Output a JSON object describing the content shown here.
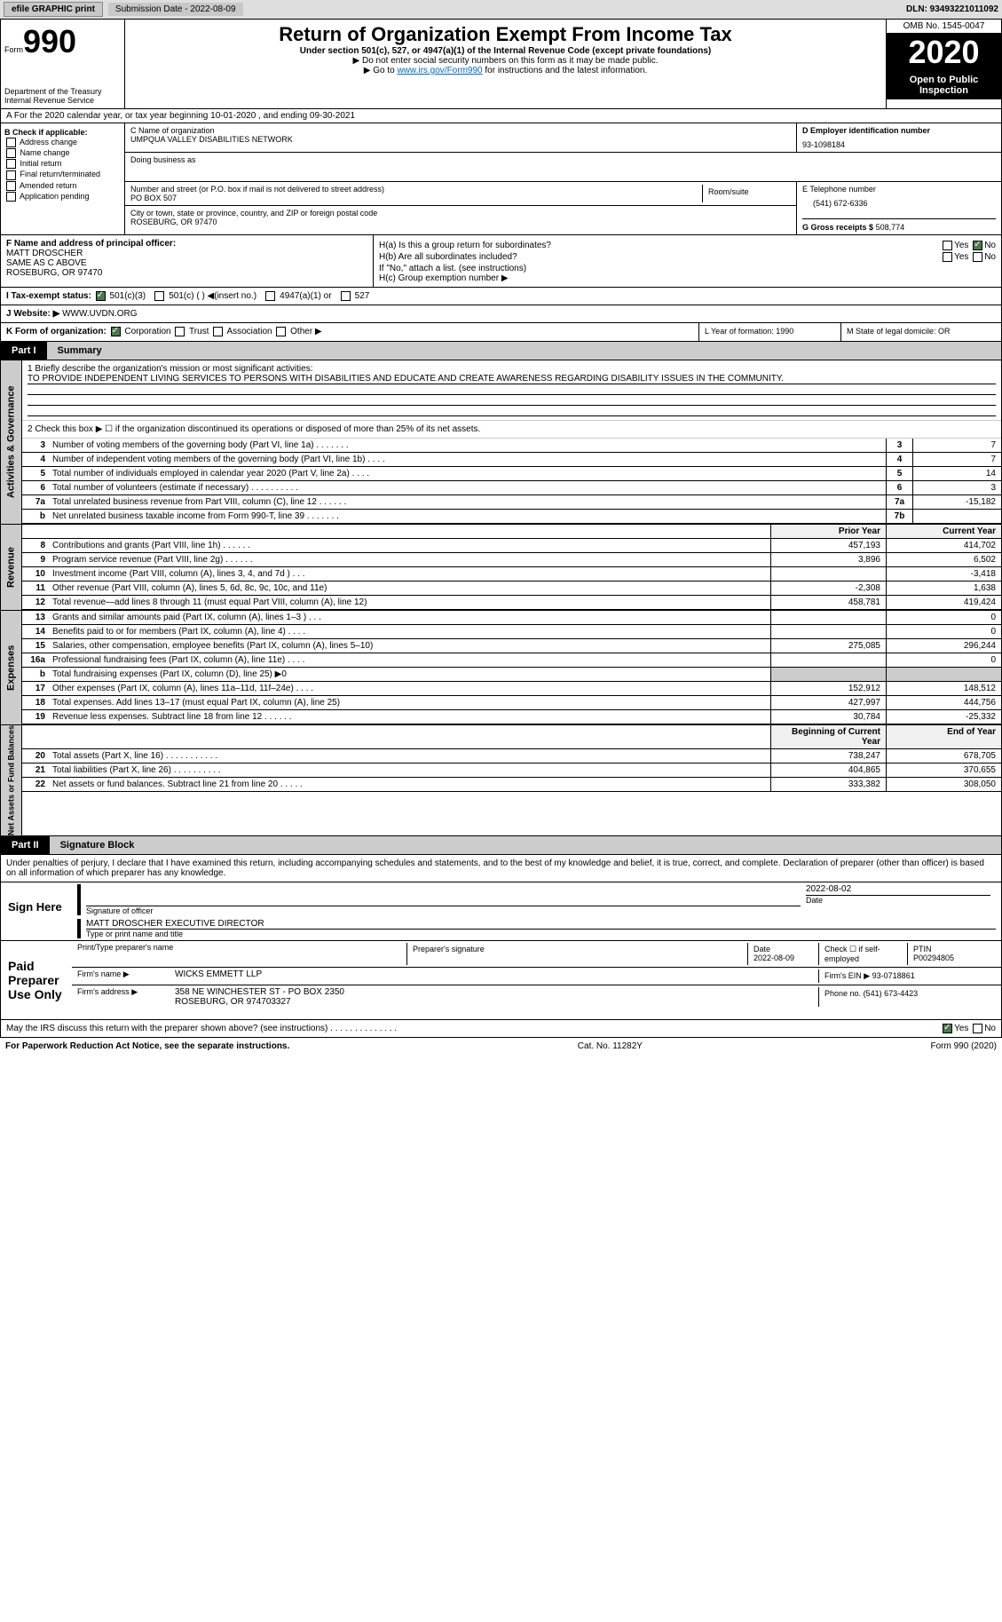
{
  "top": {
    "efile": "efile GRAPHIC print",
    "sub_label": "Submission Date - 2022-08-09",
    "dln": "DLN: 93493221011092"
  },
  "header": {
    "form_word": "Form",
    "form_no": "990",
    "dept": "Department of the Treasury\nInternal Revenue Service",
    "title": "Return of Organization Exempt From Income Tax",
    "sub": "Under section 501(c), 527, or 4947(a)(1) of the Internal Revenue Code (except private foundations)",
    "note1": "▶ Do not enter social security numbers on this form as it may be made public.",
    "note2_pre": "▶ Go to ",
    "note2_link": "www.irs.gov/Form990",
    "note2_post": " for instructions and the latest information.",
    "omb": "OMB No. 1545-0047",
    "year": "2020",
    "open": "Open to Public Inspection"
  },
  "row_a": "A For the 2020 calendar year, or tax year beginning 10-01-2020     , and ending 09-30-2021",
  "box_b": {
    "title": "B Check if applicable:",
    "items": [
      "Address change",
      "Name change",
      "Initial return",
      "Final return/terminated",
      "Amended return",
      "Application pending"
    ]
  },
  "box_c": {
    "label": "C Name of organization",
    "name": "UMPQUA VALLEY DISABILITIES NETWORK",
    "dba_label": "Doing business as",
    "addr_label": "Number and street (or P.O. box if mail is not delivered to street address)",
    "addr": "PO BOX 507",
    "room_label": "Room/suite",
    "city_label": "City or town, state or province, country, and ZIP or foreign postal code",
    "city": "ROSEBURG, OR  97470"
  },
  "box_d": {
    "label": "D Employer identification number",
    "val": "93-1098184"
  },
  "box_e": {
    "label": "E Telephone number",
    "val": "(541) 672-6336"
  },
  "box_g": {
    "label": "G Gross receipts $",
    "val": "508,774"
  },
  "box_f": {
    "label": "F Name and address of principal officer:",
    "name": "MATT DROSCHER",
    "line2": "SAME AS C ABOVE",
    "line3": "ROSEBURG, OR  97470"
  },
  "box_h": {
    "ha": "H(a)  Is this a group return for subordinates?",
    "hb": "H(b)  Are all subordinates included?",
    "hb_note": "If \"No,\" attach a list. (see instructions)",
    "hc": "H(c)  Group exemption number ▶",
    "yes": "Yes",
    "no": "No"
  },
  "tax_status": {
    "label": "I   Tax-exempt status:",
    "opts": [
      "501(c)(3)",
      "501(c) (  ) ◀(insert no.)",
      "4947(a)(1) or",
      "527"
    ]
  },
  "website": {
    "label": "J   Website: ▶",
    "val": "WWW.UVDN.ORG"
  },
  "row_k": {
    "label": "K Form of organization:",
    "opts": [
      "Corporation",
      "Trust",
      "Association",
      "Other ▶"
    ],
    "l": "L Year of formation: 1990",
    "m": "M State of legal domicile: OR"
  },
  "part1": {
    "tab": "Part I",
    "title": "Summary"
  },
  "summary": {
    "side1": "Activities & Governance",
    "side2": "Revenue",
    "side3": "Expenses",
    "side4": "Net Assets or Fund Balances",
    "q1_label": "1   Briefly describe the organization's mission or most significant activities:",
    "q1_text": "TO PROVIDE INDEPENDENT LIVING SERVICES TO PERSONS WITH DISABILITIES AND EDUCATE AND CREATE AWARENESS REGARDING DISABILITY ISSUES IN THE COMMUNITY.",
    "q2": "2   Check this box ▶ ☐  if the organization discontinued its operations or disposed of more than 25% of its net assets.",
    "lines": [
      {
        "n": "3",
        "label": "Number of voting members of the governing body (Part VI, line 1a)  .   .   .   .   .   .   .",
        "box": "3",
        "val": "7"
      },
      {
        "n": "4",
        "label": "Number of independent voting members of the governing body (Part VI, line 1b)   .   .   .   .",
        "box": "4",
        "val": "7"
      },
      {
        "n": "5",
        "label": "Total number of individuals employed in calendar year 2020 (Part V, line 2a)   .   .   .   .",
        "box": "5",
        "val": "14"
      },
      {
        "n": "6",
        "label": "Total number of volunteers (estimate if necessary)   .   .   .   .   .   .   .   .   .   .",
        "box": "6",
        "val": "3"
      },
      {
        "n": "7a",
        "label": "Total unrelated business revenue from Part VIII, column (C), line 12   .   .   .   .   .   .",
        "box": "7a",
        "val": "-15,182"
      },
      {
        "n": "b",
        "label": "Net unrelated business taxable income from Form 990-T, line 39   .   .   .   .   .   .   .",
        "box": "7b",
        "val": ""
      }
    ],
    "col_prior": "Prior Year",
    "col_curr": "Current Year",
    "rev": [
      {
        "n": "8",
        "label": "Contributions and grants (Part VIII, line 1h)   .   .   .   .   .   .",
        "p": "457,193",
        "c": "414,702"
      },
      {
        "n": "9",
        "label": "Program service revenue (Part VIII, line 2g)   .   .   .   .   .   .",
        "p": "3,896",
        "c": "6,502"
      },
      {
        "n": "10",
        "label": "Investment income (Part VIII, column (A), lines 3, 4, and 7d )   .   .   .",
        "p": "",
        "c": "-3,418"
      },
      {
        "n": "11",
        "label": "Other revenue (Part VIII, column (A), lines 5, 6d, 8c, 9c, 10c, and 11e)",
        "p": "-2,308",
        "c": "1,638"
      },
      {
        "n": "12",
        "label": "Total revenue—add lines 8 through 11 (must equal Part VIII, column (A), line 12)",
        "p": "458,781",
        "c": "419,424"
      }
    ],
    "exp": [
      {
        "n": "13",
        "label": "Grants and similar amounts paid (Part IX, column (A), lines 1–3 )   .   .   .",
        "p": "",
        "c": "0"
      },
      {
        "n": "14",
        "label": "Benefits paid to or for members (Part IX, column (A), line 4)   .   .   .   .",
        "p": "",
        "c": "0"
      },
      {
        "n": "15",
        "label": "Salaries, other compensation, employee benefits (Part IX, column (A), lines 5–10)",
        "p": "275,085",
        "c": "296,244"
      },
      {
        "n": "16a",
        "label": "Professional fundraising fees (Part IX, column (A), line 11e)   .   .   .   .",
        "p": "",
        "c": "0"
      },
      {
        "n": "b",
        "label": "Total fundraising expenses (Part IX, column (D), line 25) ▶0",
        "p": "GRAY",
        "c": "GRAY"
      },
      {
        "n": "17",
        "label": "Other expenses (Part IX, column (A), lines 11a–11d, 11f–24e)   .   .   .   .",
        "p": "152,912",
        "c": "148,512"
      },
      {
        "n": "18",
        "label": "Total expenses. Add lines 13–17 (must equal Part IX, column (A), line 25)",
        "p": "427,997",
        "c": "444,756"
      },
      {
        "n": "19",
        "label": "Revenue less expenses. Subtract line 18 from line 12   .   .   .   .   .   .",
        "p": "30,784",
        "c": "-25,332"
      }
    ],
    "col_begin": "Beginning of Current Year",
    "col_end": "End of Year",
    "net": [
      {
        "n": "20",
        "label": "Total assets (Part X, line 16)   .   .   .   .   .   .   .   .   .   .   .",
        "p": "738,247",
        "c": "678,705"
      },
      {
        "n": "21",
        "label": "Total liabilities (Part X, line 26)   .   .   .   .   .   .   .   .   .   .",
        "p": "404,865",
        "c": "370,655"
      },
      {
        "n": "22",
        "label": "Net assets or fund balances. Subtract line 21 from line 20   .   .   .   .   .",
        "p": "333,382",
        "c": "308,050"
      }
    ]
  },
  "part2": {
    "tab": "Part II",
    "title": "Signature Block"
  },
  "penalty": "Under penalties of perjury, I declare that I have examined this return, including accompanying schedules and statements, and to the best of my knowledge and belief, it is true, correct, and complete. Declaration of preparer (other than officer) is based on all information of which preparer has any knowledge.",
  "sign": {
    "here": "Sign Here",
    "sig_label": "Signature of officer",
    "date": "2022-08-02",
    "date_label": "Date",
    "name": "MATT DROSCHER  EXECUTIVE DIRECTOR",
    "name_label": "Type or print name and title"
  },
  "paid": {
    "title": "Paid Preparer Use Only",
    "h1": "Print/Type preparer's name",
    "h2": "Preparer's signature",
    "h3": "Date",
    "h3v": "2022-08-09",
    "h4": "Check ☐ if self-employed",
    "h5": "PTIN",
    "h5v": "P00294805",
    "firm_label": "Firm's name     ▶",
    "firm": "WICKS EMMETT LLP",
    "ein_label": "Firm's EIN ▶",
    "ein": "93-0718861",
    "addr_label": "Firm's address ▶",
    "addr": "358 NE WINCHESTER ST - PO BOX 2350",
    "addr2": "ROSEBURG, OR  974703327",
    "phone_label": "Phone no.",
    "phone": "(541) 673-4423"
  },
  "discuss": {
    "q": "May the IRS discuss this return with the preparer shown above? (see instructions)   .   .   .   .   .   .   .   .   .   .   .   .   .   .",
    "yes": "Yes",
    "no": "No"
  },
  "footer": {
    "left": "For Paperwork Reduction Act Notice, see the separate instructions.",
    "mid": "Cat. No. 11282Y",
    "right": "Form 990 (2020)"
  }
}
